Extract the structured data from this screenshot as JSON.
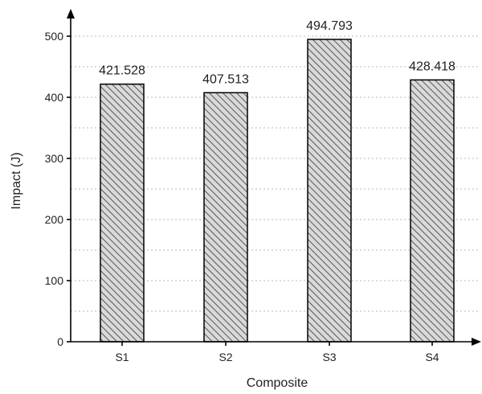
{
  "chart_data": {
    "type": "bar",
    "title": "",
    "xlabel": "Composite",
    "ylabel": "Impact (J)",
    "categories": [
      "S1",
      "S2",
      "S3",
      "S4"
    ],
    "values": [
      421.528,
      407.513,
      494.793,
      428.418
    ],
    "value_labels": [
      "421.528",
      "407.513",
      "494.793",
      "428.418"
    ],
    "ylim": [
      0,
      530
    ],
    "yticks": [
      0,
      100,
      200,
      300,
      400,
      500
    ],
    "ytick_labels": [
      "0",
      "100",
      "200",
      "300",
      "400",
      "500"
    ],
    "minor_grid_step": 50,
    "grid": true,
    "legend": "none",
    "colors": {
      "bar_fill": "#d9d9d9",
      "bar_hatch": "#555555",
      "bar_edge": "#000000",
      "grid": "#b8b8b8"
    }
  }
}
